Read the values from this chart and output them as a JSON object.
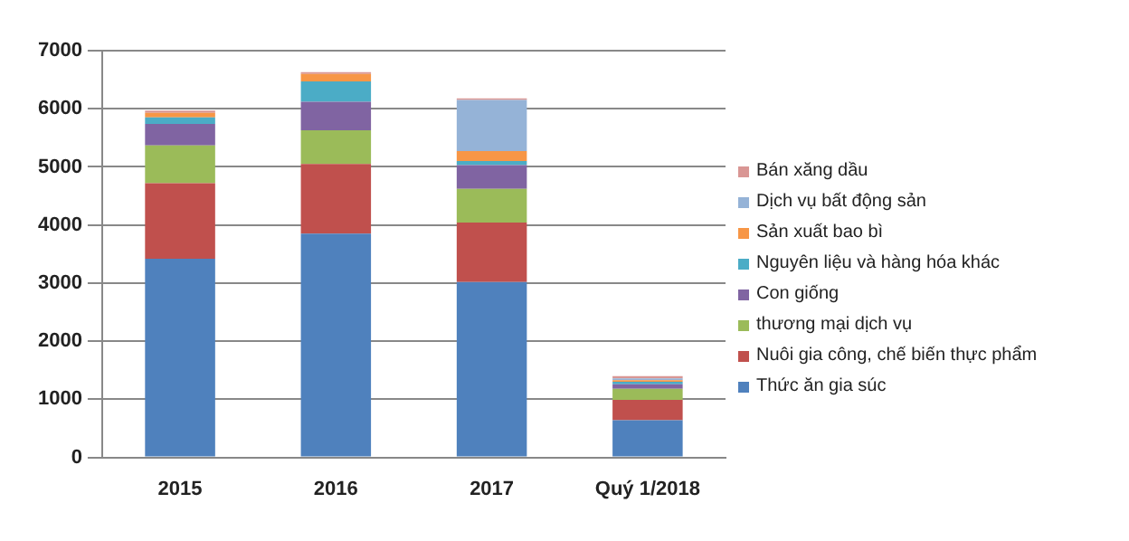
{
  "chart_data": {
    "type": "bar",
    "stacked": true,
    "categories": [
      "2015",
      "2016",
      "2017",
      "Quý 1/2018"
    ],
    "series": [
      {
        "name": "Thức ăn gia súc",
        "color": "#4f81bd",
        "values": [
          3420,
          3850,
          3020,
          640
        ]
      },
      {
        "name": "Nuôi gia công, chế biến thực phẩm",
        "color": "#c0504d",
        "values": [
          1300,
          1200,
          1020,
          350
        ]
      },
      {
        "name": "thương mại dịch vụ",
        "color": "#9bbb59",
        "values": [
          650,
          580,
          580,
          190
        ]
      },
      {
        "name": "Con giống",
        "color": "#8064a2",
        "values": [
          370,
          490,
          410,
          80
        ]
      },
      {
        "name": "Nguyên  liệu và hàng hóa khác",
        "color": "#4bacc6",
        "values": [
          110,
          350,
          70,
          40
        ]
      },
      {
        "name": "Sản xuất bao bì",
        "color": "#f79646",
        "values": [
          80,
          130,
          170,
          30
        ]
      },
      {
        "name": "Dịch vụ  bất động  sản",
        "color": "#95b3d7",
        "values": [
          0,
          0,
          880,
          30
        ]
      },
      {
        "name": "Bán xăng dầu",
        "color": "#d99694",
        "values": [
          40,
          30,
          30,
          40
        ]
      }
    ],
    "ylim": [
      0,
      7000
    ],
    "yticks": [
      0,
      1000,
      2000,
      3000,
      4000,
      5000,
      6000,
      7000
    ],
    "grid": "y",
    "legend": "right"
  }
}
